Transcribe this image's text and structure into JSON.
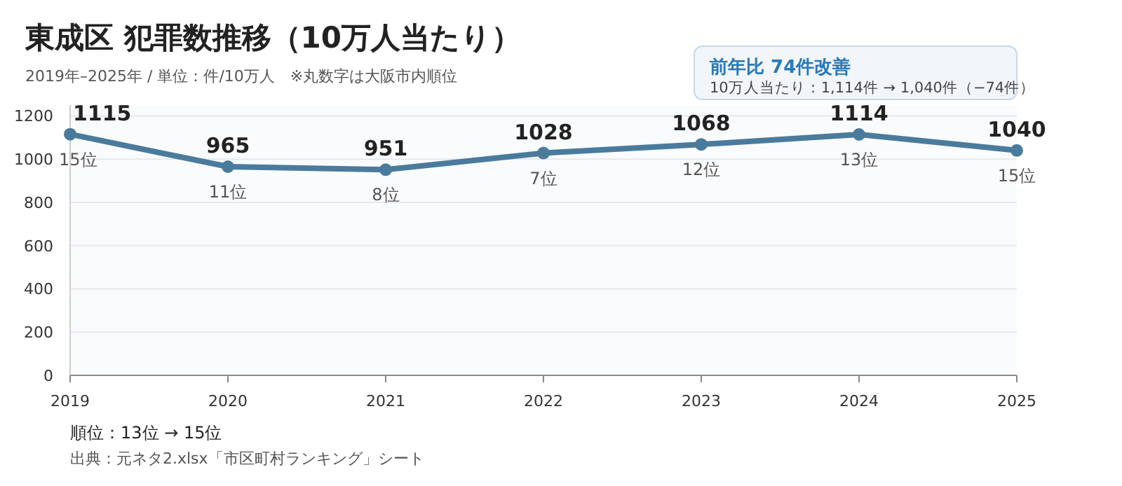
{
  "chart_data": {
    "type": "line",
    "title": "東成区 犯罪数推移（10万人当たり）",
    "subtitle": "2019年–2025年 / 単位：件/10万人　※丸数字は大阪市内順位",
    "categories": [
      "2019",
      "2020",
      "2021",
      "2022",
      "2023",
      "2024",
      "2025"
    ],
    "series": [
      {
        "color": "#4a7b9d",
        "values": [
          1115,
          965,
          951,
          1028,
          1068,
          1114,
          1040
        ]
      }
    ],
    "ylim": [
      0,
      1250
    ],
    "yticks": [
      0,
      200,
      400,
      600,
      800,
      1000,
      1200
    ],
    "grid": "y",
    "marker": "circle",
    "line_style": "solid",
    "data_labels": true,
    "annotations": [
      {
        "text": "15位",
        "x": "2019",
        "y": 1115
      },
      {
        "text": "11位",
        "x": "2020",
        "y": 965
      },
      {
        "text": "8位",
        "x": "2021",
        "y": 951
      },
      {
        "text": "7位",
        "x": "2022",
        "y": 1028
      },
      {
        "text": "12位",
        "x": "2023",
        "y": 1068
      },
      {
        "text": "13位",
        "x": "2024",
        "y": 1114
      },
      {
        "text": "15位",
        "x": "2025",
        "y": 1040
      },
      "前年比 74件改善",
      "10万人当たり：1,114件 → 1,040件（−74件）",
      "順位：13位 → 15位",
      "出典：元ネタ2.xlsx「市区町村ランキング」シート"
    ]
  }
}
